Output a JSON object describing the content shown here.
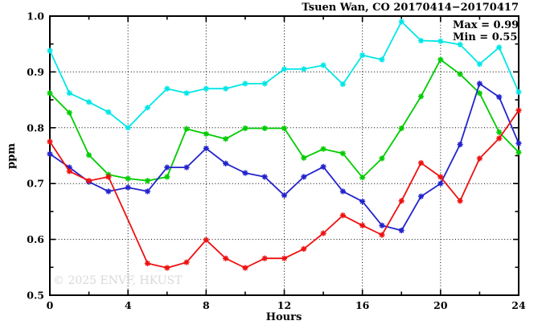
{
  "header": {
    "title": "Tsuen Wan, CO 20170414−20170417"
  },
  "annotations": {
    "max_label": "Max = 0.99",
    "min_label": "Min = 0.55",
    "watermark": "© 2025 ENVF, HKUST"
  },
  "axes": {
    "ylabel": "ppm",
    "xlabel": "Hours",
    "x_tick_labels": [
      "0",
      "4",
      "8",
      "12",
      "16",
      "20",
      "24"
    ],
    "y_tick_labels": [
      "0.5",
      "0.6",
      "0.7",
      "0.8",
      "0.9",
      "1.0"
    ]
  },
  "chart_data": {
    "type": "line",
    "title": "Tsuen Wan, CO 20170414−20170417",
    "xlabel": "Hours",
    "ylabel": "ppm",
    "xlim": [
      0,
      24
    ],
    "ylim": [
      0.5,
      1.0
    ],
    "x_major_ticks": [
      0,
      4,
      8,
      12,
      16,
      20,
      24
    ],
    "x_minor_ticks": [
      2,
      6,
      10,
      14,
      18,
      22
    ],
    "y_major_ticks": [
      0.5,
      0.6,
      0.7,
      0.8,
      0.9,
      1.0
    ],
    "y_minor_ticks": [
      0.55,
      0.65,
      0.75,
      0.85,
      0.95
    ],
    "grid": {
      "x_lines": [
        4,
        8,
        12,
        16,
        20
      ],
      "y_lines": [
        0.6,
        0.7,
        0.8,
        0.9
      ],
      "style": "dotted"
    },
    "legend": "none",
    "stats": {
      "max": 0.99,
      "min": 0.55
    },
    "x": [
      0,
      1,
      2,
      3,
      4,
      5,
      6,
      7,
      8,
      9,
      10,
      11,
      12,
      13,
      14,
      15,
      16,
      17,
      18,
      19,
      20,
      21,
      22,
      23,
      24
    ],
    "series": [
      {
        "name": "day-cyan",
        "color": "#00e6e6",
        "values": [
          0.938,
          0.862,
          0.846,
          0.828,
          0.8,
          0.836,
          0.87,
          0.862,
          0.87,
          0.87,
          0.879,
          0.879,
          0.905,
          0.905,
          0.912,
          0.878,
          0.93,
          0.922,
          0.99,
          0.956,
          0.955,
          0.949,
          0.914,
          0.944,
          0.864
        ],
        "no_marker_at": []
      },
      {
        "name": "day-green",
        "color": "#00cc00",
        "values": [
          0.862,
          0.827,
          0.751,
          0.716,
          0.709,
          0.705,
          0.712,
          0.798,
          0.789,
          0.78,
          0.799,
          0.799,
          0.799,
          0.746,
          0.762,
          0.754,
          0.711,
          0.745,
          0.799,
          0.856,
          0.922,
          0.896,
          0.862,
          0.792,
          0.756
        ],
        "no_marker_at": []
      },
      {
        "name": "day-blue",
        "color": "#2323cc",
        "values": [
          0.753,
          0.729,
          0.703,
          0.686,
          0.693,
          0.686,
          0.729,
          0.729,
          0.763,
          0.736,
          0.719,
          0.712,
          0.679,
          0.712,
          0.73,
          0.686,
          0.668,
          0.625,
          0.616,
          0.677,
          0.7,
          0.77,
          0.879,
          0.855,
          0.772
        ],
        "no_marker_at": []
      },
      {
        "name": "day-red",
        "color": "#ee1111",
        "values": [
          0.775,
          0.722,
          0.705,
          0.712,
          0.635,
          0.557,
          0.549,
          0.559,
          0.599,
          0.566,
          0.549,
          0.566,
          0.566,
          0.583,
          0.611,
          0.643,
          0.625,
          0.608,
          0.669,
          0.737,
          0.712,
          0.669,
          0.745,
          0.781,
          0.831
        ],
        "no_marker_at": [
          4
        ]
      }
    ]
  }
}
